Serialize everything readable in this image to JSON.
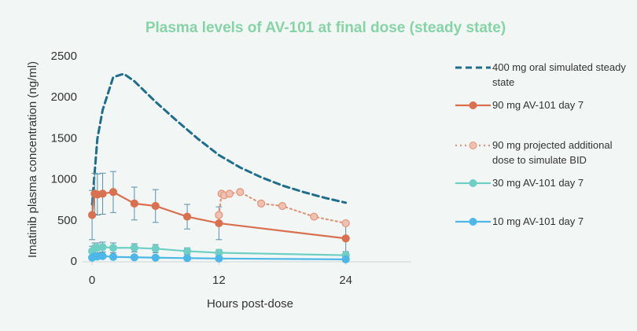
{
  "chart_data": {
    "type": "line",
    "title": "Plasma levels of AV-101 at final dose (steady state)",
    "xlabel": "Hours post-dose",
    "ylabel": "Imatinib plasma concentration (ng/ml)",
    "xlim": [
      -0.9,
      30.2
    ],
    "xticks": [
      0,
      12,
      24
    ],
    "ylim": [
      0,
      2500
    ],
    "yticks": [
      0,
      500,
      1000,
      1500,
      2000,
      2500
    ],
    "grid": false,
    "legend": "right",
    "series": [
      {
        "name": "400 mg oral simulated steady state",
        "color": "#1f6e8c",
        "line_style": "dashed",
        "marker": false,
        "x": [
          0,
          0.5,
          1,
          2,
          3,
          4,
          6,
          8,
          10,
          12,
          14,
          16,
          18,
          20,
          22,
          24
        ],
        "values": [
          700,
          1500,
          1850,
          2250,
          2290,
          2200,
          1950,
          1720,
          1500,
          1300,
          1150,
          1030,
          930,
          850,
          780,
          720
        ]
      },
      {
        "name": "90 mg AV-101 day 7",
        "color": "#d9704f",
        "line_style": "solid",
        "marker": true,
        "x": [
          0,
          0.25,
          0.5,
          1,
          2,
          4,
          6,
          9,
          12,
          24
        ],
        "values": [
          570,
          830,
          820,
          830,
          850,
          710,
          680,
          550,
          470,
          285
        ],
        "errors": [
          300,
          250,
          250,
          250,
          250,
          200,
          200,
          150,
          200,
          160
        ]
      },
      {
        "name": "90 mg projected additional dose to simulate BID",
        "color": "#e0957a",
        "line_style": "dotted",
        "marker": true,
        "x": [
          12,
          12.25,
          12.5,
          13,
          14,
          16,
          18,
          21,
          24
        ],
        "values": [
          570,
          830,
          810,
          830,
          850,
          710,
          680,
          550,
          470
        ]
      },
      {
        "name": "30 mg AV-101 day 7",
        "color": "#6fcfc4",
        "line_style": "solid",
        "marker": true,
        "x": [
          0,
          0.25,
          0.5,
          1,
          2,
          4,
          6,
          9,
          12,
          24
        ],
        "values": [
          130,
          170,
          170,
          180,
          170,
          170,
          160,
          130,
          110,
          80
        ],
        "errors": [
          60,
          60,
          60,
          60,
          60,
          50,
          50,
          40,
          40,
          30
        ]
      },
      {
        "name": "10 mg AV-101 day 7",
        "color": "#4db8e8",
        "line_style": "solid",
        "marker": true,
        "x": [
          0,
          0.25,
          0.5,
          1,
          2,
          4,
          6,
          9,
          12,
          24
        ],
        "values": [
          50,
          70,
          65,
          70,
          60,
          55,
          50,
          45,
          40,
          30
        ]
      }
    ]
  }
}
